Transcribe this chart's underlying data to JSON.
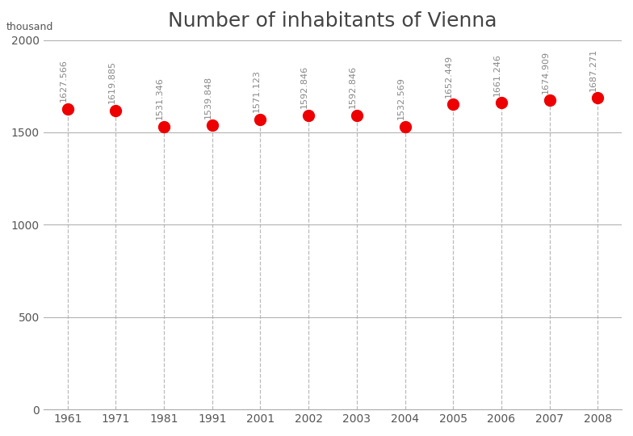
{
  "title": "Number of inhabitants of Vienna",
  "ylabel": "thousand",
  "years": [
    "1961",
    "1971",
    "1981",
    "1991",
    "2001",
    "2002",
    "2003",
    "2004",
    "2005",
    "2006",
    "2007",
    "2008"
  ],
  "values": [
    1627.566,
    1619.885,
    1531.346,
    1539.848,
    1571.123,
    1592.846,
    1592.846,
    1532.569,
    1652.449,
    1661.246,
    1674.909,
    1687.271
  ],
  "ylim": [
    0,
    2000
  ],
  "yticks": [
    0,
    500,
    1000,
    1500,
    2000
  ],
  "dot_color": "#ee0000",
  "vline_color": "#bbbbbb",
  "hgrid_color": "#aaaaaa",
  "background_color": "#ffffff",
  "title_fontsize": 18,
  "label_fontsize": 9,
  "tick_fontsize": 10,
  "annotation_fontsize": 8,
  "annotation_color": "#888888",
  "spine_color": "#aaaaaa"
}
